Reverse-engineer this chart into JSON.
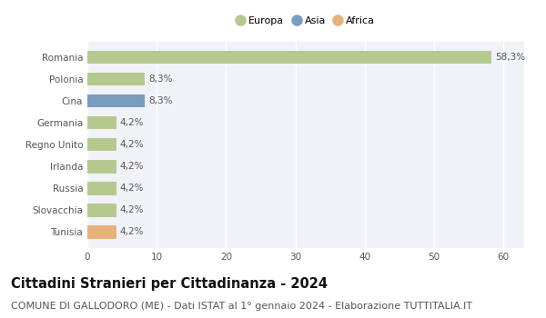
{
  "categories": [
    "Romania",
    "Polonia",
    "Cina",
    "Germania",
    "Regno Unito",
    "Irlanda",
    "Russia",
    "Slovacchia",
    "Tunisia"
  ],
  "values": [
    58.3,
    8.3,
    8.3,
    4.2,
    4.2,
    4.2,
    4.2,
    4.2,
    4.2
  ],
  "colors": [
    "#b5c98e",
    "#b5c98e",
    "#7b9bbf",
    "#b5c98e",
    "#b5c98e",
    "#b5c98e",
    "#b5c98e",
    "#b5c98e",
    "#e8b07a"
  ],
  "labels": [
    "58,3%",
    "8,3%",
    "8,3%",
    "4,2%",
    "4,2%",
    "4,2%",
    "4,2%",
    "4,2%",
    "4,2%"
  ],
  "legend": [
    {
      "label": "Europa",
      "color": "#b5c98e"
    },
    {
      "label": "Asia",
      "color": "#7b9bbf"
    },
    {
      "label": "Africa",
      "color": "#e8b07a"
    }
  ],
  "xlim": [
    0,
    63
  ],
  "xticks": [
    0,
    10,
    20,
    30,
    40,
    50,
    60
  ],
  "title": "Cittadini Stranieri per Cittadinanza - 2024",
  "subtitle": "COMUNE DI GALLODORO (ME) - Dati ISTAT al 1° gennaio 2024 - Elaborazione TUTTITALIA.IT",
  "bg_color": "#ffffff",
  "plot_bg_color": "#f0f2f7",
  "grid_color": "#ffffff",
  "title_fontsize": 10.5,
  "subtitle_fontsize": 8,
  "label_fontsize": 7.5,
  "tick_fontsize": 7.5,
  "bar_height": 0.6
}
